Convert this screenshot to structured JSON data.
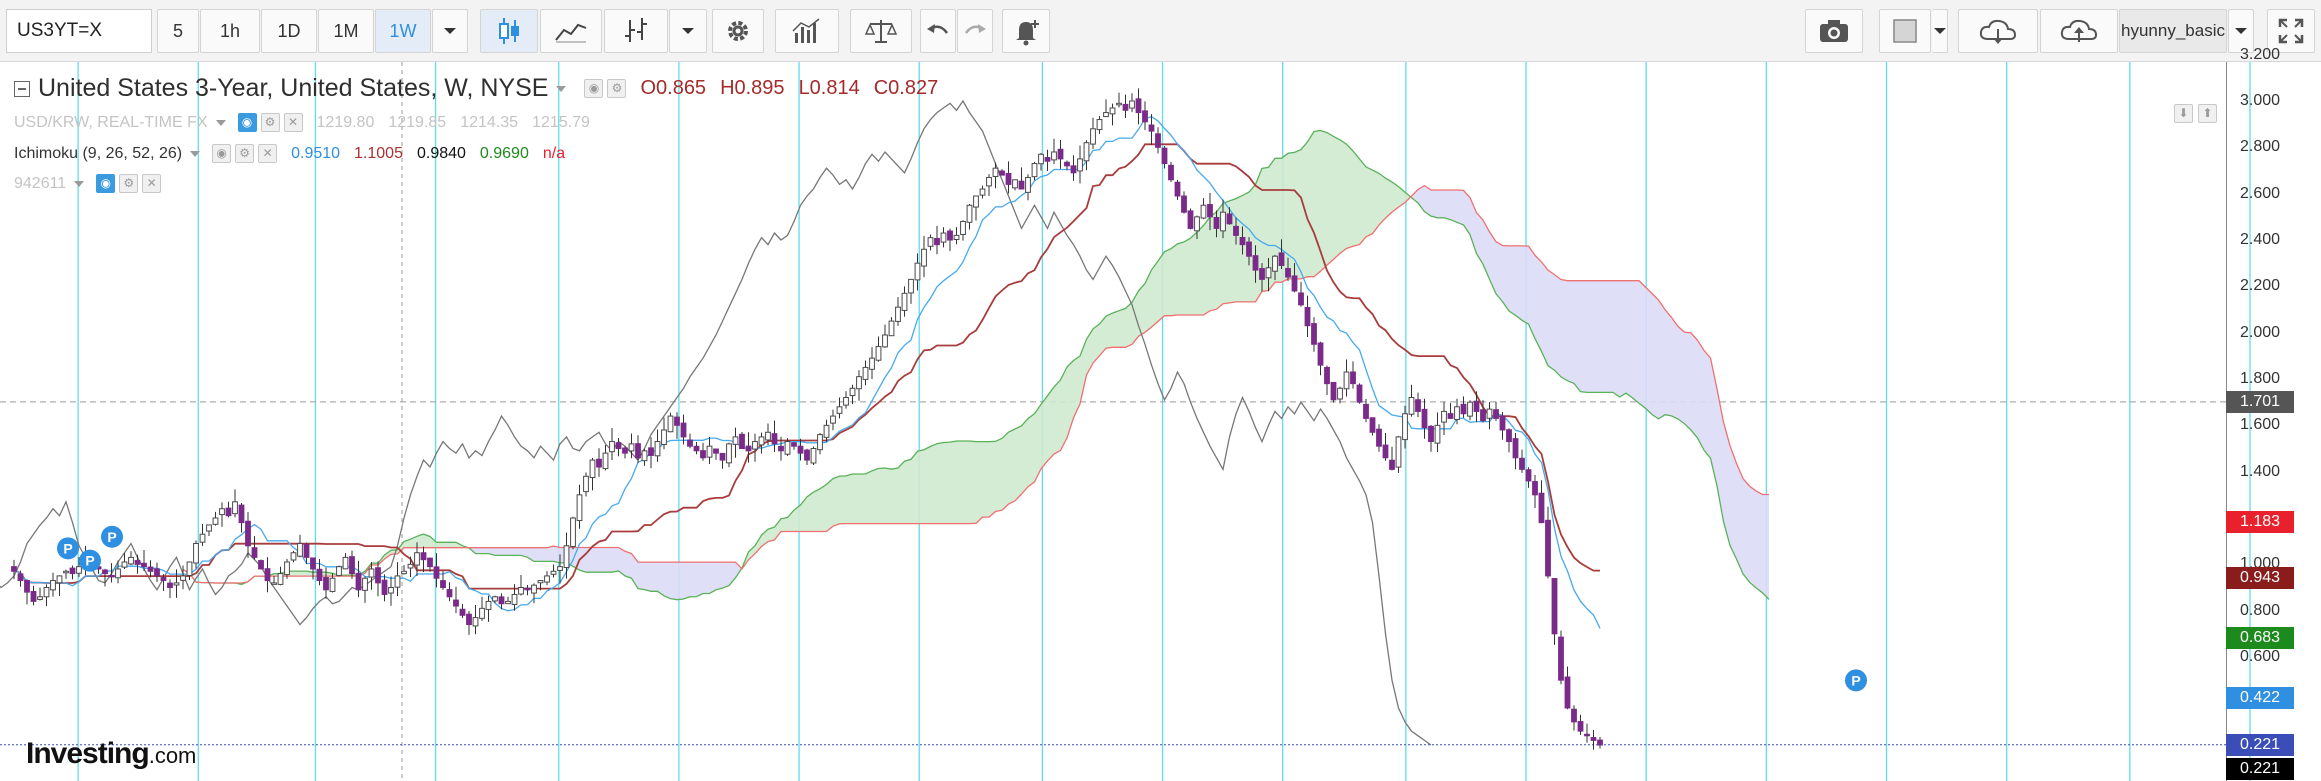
{
  "toolbar": {
    "symbol": "US3YT=X",
    "intervals": [
      "5",
      "1h",
      "1D",
      "1M",
      "1W"
    ],
    "active_interval": "1W",
    "user": "hyunny_basic",
    "icons": [
      "candles-icon",
      "line-chart-icon",
      "bar-chart-icon",
      "chevron-down-icon",
      "gear-icon",
      "indicators-icon",
      "scales-icon",
      "undo-icon",
      "redo-icon",
      "add-alert-icon",
      "camera-icon",
      "square-icon",
      "cloud-download-icon",
      "cloud-upload-icon",
      "fullscreen-icon"
    ]
  },
  "legend": {
    "title": "United States 3-Year, United States, W, NYSE",
    "o": "O0.865",
    "h": "H0.895",
    "l": "L0.814",
    "c": "C0.827",
    "usd": {
      "name": "USD/KRW, REAL-TIME FX",
      "v1": "1219.80",
      "v2": "1219.85",
      "v3": "1214.35",
      "v4": "1215.79"
    },
    "ichimoku": {
      "name": "Ichimoku (9, 26, 52, 26)",
      "v1": "0.9510",
      "v2": "1.1005",
      "v3": "0.9840",
      "v4": "0.9690",
      "v5": "n/a"
    },
    "id": "942611"
  },
  "price_axis": {
    "ticks": [
      "3.200",
      "3.000",
      "2.800",
      "2.600",
      "2.400",
      "2.200",
      "2.000",
      "1.800",
      "1.600",
      "1.400",
      "1.000",
      "0.800",
      "0.600"
    ],
    "tags": [
      {
        "label": "1.701",
        "value": 1.701,
        "color": "#555555"
      },
      {
        "label": "1.183",
        "value": 1.183,
        "color": "#e8212d"
      },
      {
        "label": "0.943",
        "value": 0.943,
        "color": "#8b1c1c"
      },
      {
        "label": "0.683",
        "value": 0.683,
        "color": "#1d8a1d"
      },
      {
        "label": "0.422",
        "value": 0.422,
        "color": "#2f8fe0"
      },
      {
        "label": "0.221",
        "value": 0.221,
        "color": "#3b4eb8"
      },
      {
        "label": "0.221",
        "value": 0.221,
        "color": "#000000"
      }
    ]
  },
  "chart_data": {
    "type": "candlestick",
    "ichimoku_params": [
      9,
      26,
      52,
      26
    ],
    "crosshair_price": 1.701,
    "markers": [
      "P",
      "P",
      "P",
      "P"
    ],
    "colors": {
      "tenkan": "#47a9f0",
      "kijun": "#a83c3c",
      "chikou": "#777777",
      "span_a": "#59b259",
      "span_b": "#ef7070",
      "cloud_up": "#cfe9cf",
      "cloud_down": "#dcdcf7",
      "up_candle": "#4a4a4a",
      "down_candle": "#7a2a88",
      "grid_vertical": "#46d7e8"
    },
    "closes": [
      0.97,
      0.93,
      0.88,
      0.84,
      0.86,
      0.9,
      0.93,
      0.95,
      0.97,
      0.96,
      0.99,
      1.02,
      1.0,
      0.98,
      0.96,
      0.95,
      0.98,
      1.01,
      1.03,
      1.0,
      0.99,
      0.97,
      0.95,
      0.93,
      0.9,
      0.92,
      0.95,
      1.01,
      1.09,
      1.13,
      1.17,
      1.2,
      1.24,
      1.21,
      1.27,
      1.18,
      1.08,
      1.03,
      0.98,
      0.93,
      0.92,
      0.96,
      1.01,
      1.05,
      1.09,
      1.03,
      0.98,
      0.93,
      0.89,
      0.94,
      0.99,
      1.03,
      0.96,
      0.89,
      0.94,
      0.98,
      0.92,
      0.87,
      0.9,
      0.95,
      0.97,
      1.0,
      1.05,
      1.02,
      0.99,
      0.94,
      0.9,
      0.86,
      0.82,
      0.78,
      0.74,
      0.77,
      0.81,
      0.84,
      0.86,
      0.83,
      0.84,
      0.87,
      0.9,
      0.89,
      0.91,
      0.93,
      0.95,
      0.97,
      0.99,
      1.08,
      1.2,
      1.3,
      1.38,
      1.45,
      1.42,
      1.48,
      1.53,
      1.5,
      1.48,
      1.52,
      1.46,
      1.49,
      1.47,
      1.53,
      1.58,
      1.64,
      1.6,
      1.55,
      1.51,
      1.49,
      1.46,
      1.51,
      1.48,
      1.45,
      1.52,
      1.55,
      1.5,
      1.49,
      1.53,
      1.55,
      1.57,
      1.52,
      1.49,
      1.53,
      1.51,
      1.48,
      1.45,
      1.5,
      1.56,
      1.6,
      1.64,
      1.68,
      1.72,
      1.76,
      1.81,
      1.85,
      1.89,
      1.94,
      1.99,
      2.05,
      2.11,
      2.17,
      2.23,
      2.3,
      2.36,
      2.41,
      2.38,
      2.43,
      2.4,
      2.42,
      2.48,
      2.55,
      2.59,
      2.62,
      2.67,
      2.71,
      2.68,
      2.64,
      2.66,
      2.62,
      2.67,
      2.73,
      2.77,
      2.74,
      2.78,
      2.75,
      2.72,
      2.69,
      2.75,
      2.82,
      2.88,
      2.92,
      2.95,
      2.97,
      2.99,
      2.96,
      3.0,
      2.95,
      2.91,
      2.87,
      2.8,
      2.73,
      2.66,
      2.59,
      2.52,
      2.45,
      2.5,
      2.55,
      2.5,
      2.45,
      2.52,
      2.47,
      2.42,
      2.38,
      2.33,
      2.27,
      2.23,
      2.28,
      2.33,
      2.29,
      2.24,
      2.18,
      2.12,
      2.03,
      1.95,
      1.86,
      1.78,
      1.71,
      1.76,
      1.83,
      1.78,
      1.7,
      1.63,
      1.57,
      1.51,
      1.46,
      1.41,
      1.55,
      1.65,
      1.72,
      1.66,
      1.59,
      1.53,
      1.6,
      1.66,
      1.63,
      1.68,
      1.65,
      1.7,
      1.66,
      1.62,
      1.67,
      1.63,
      1.58,
      1.53,
      1.46,
      1.41,
      1.36,
      1.3,
      1.18,
      0.95,
      0.7,
      0.5,
      0.38,
      0.32,
      0.28,
      0.26,
      0.24,
      0.22
    ]
  }
}
